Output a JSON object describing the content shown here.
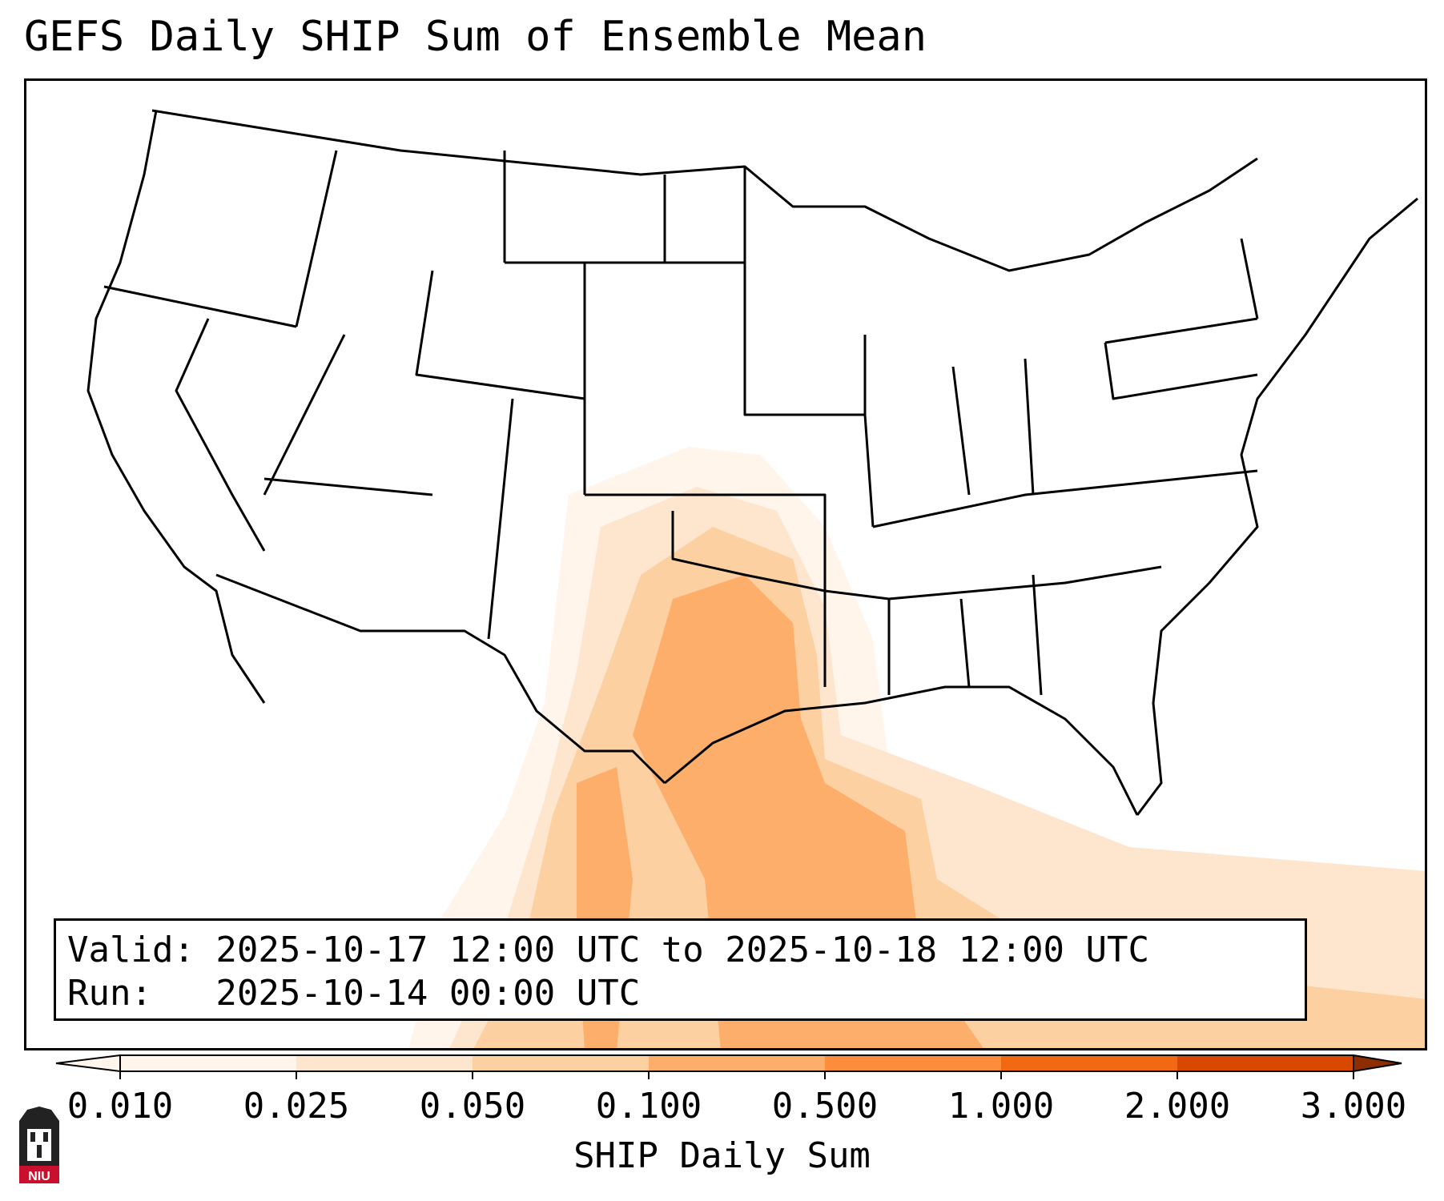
{
  "title": "GEFS Daily SHIP Sum of Ensemble Mean",
  "info": {
    "valid_line": "Valid: 2025-10-17 12:00 UTC to 2025-10-18 12:00 UTC",
    "run_line": "Run:   2025-10-14 00:00 UTC"
  },
  "colorbar": {
    "label": "SHIP Daily Sum",
    "ticks": [
      "0.010",
      "0.025",
      "0.050",
      "0.100",
      "0.500",
      "1.000",
      "2.000",
      "3.000"
    ],
    "colors": [
      "#fff5eb",
      "#fee6ce",
      "#fdd0a2",
      "#fdae6b",
      "#fd8d3c",
      "#f16913",
      "#d94801",
      "#8c2d04"
    ],
    "extend": "both"
  },
  "logo": {
    "text": "NIU"
  },
  "map": {
    "region": "Contiguous United States",
    "fill_colors": {
      "land": "#ffffff",
      "borders": "#000000",
      "faint_coast": "#d9d9d9"
    }
  }
}
